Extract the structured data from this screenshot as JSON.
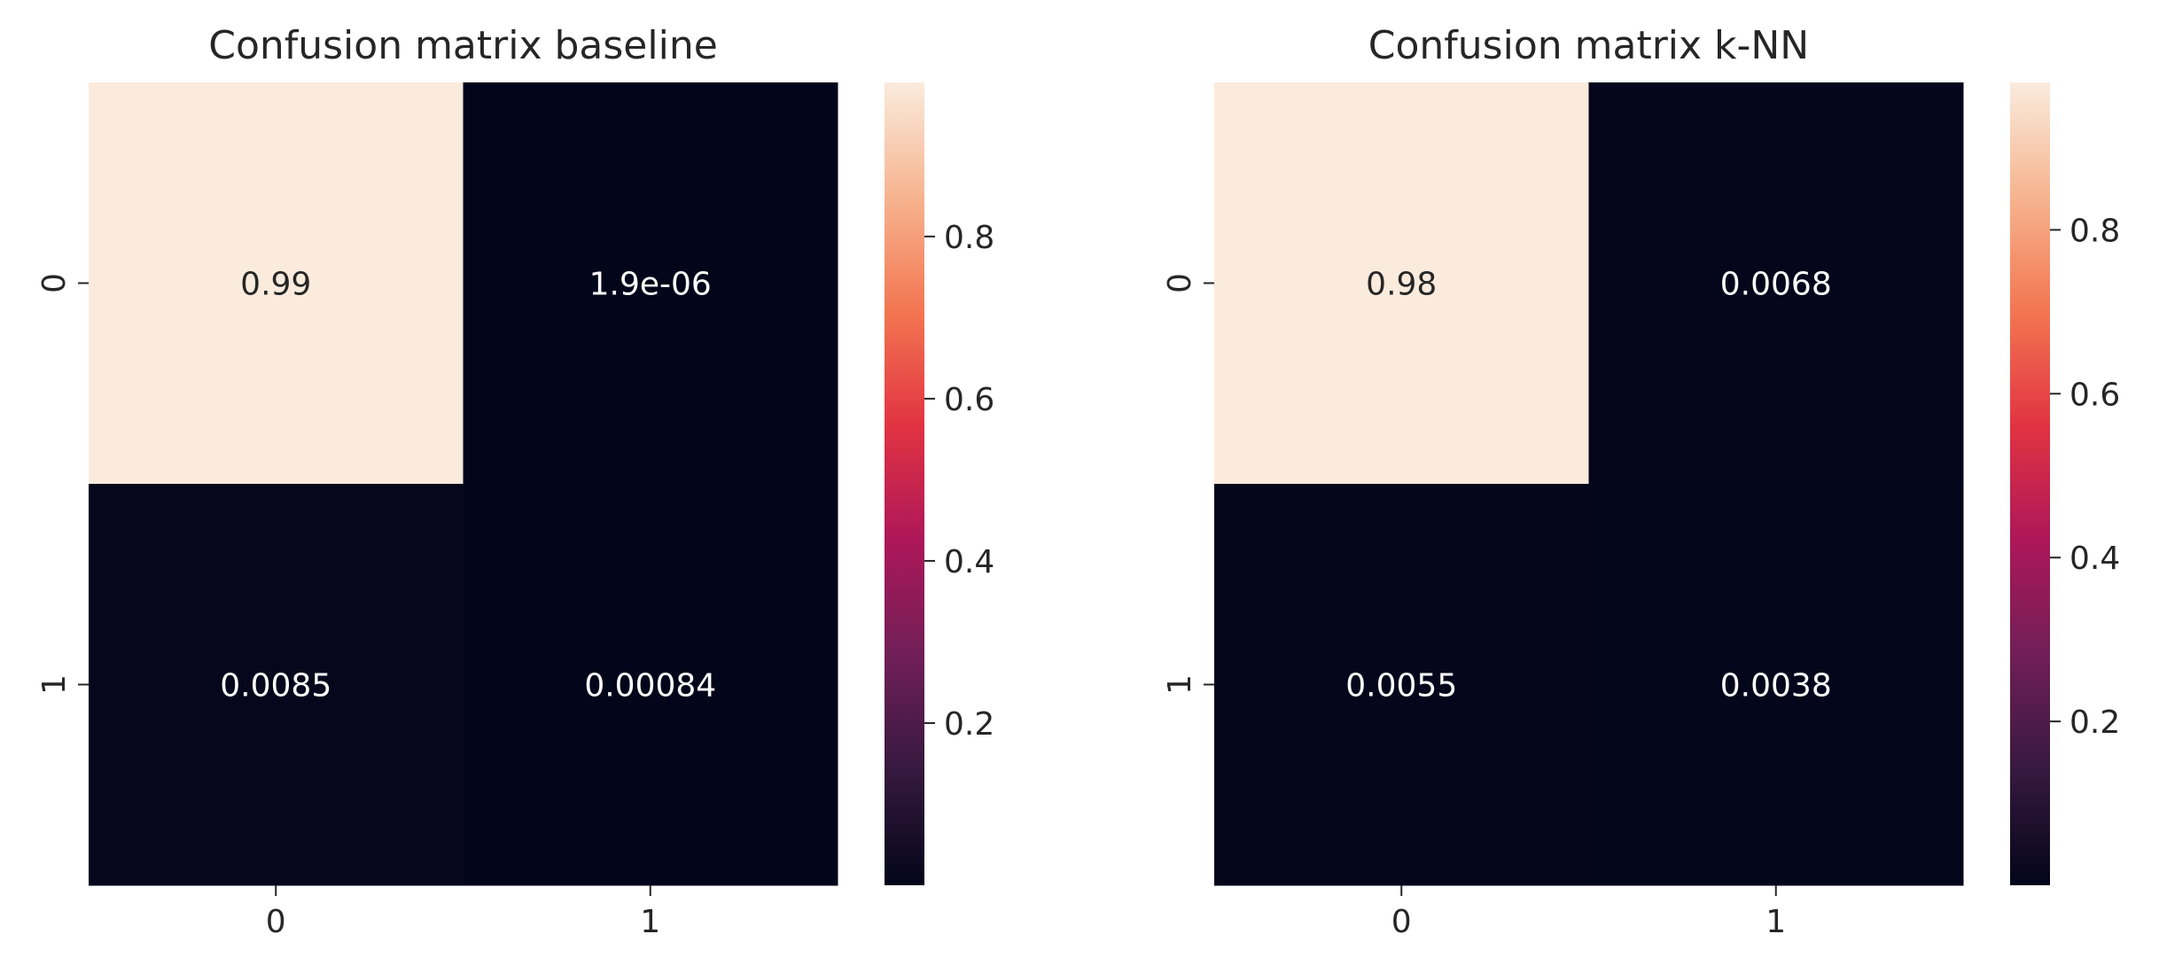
{
  "chart_data": [
    {
      "type": "heatmap",
      "title": "Confusion matrix baseline",
      "x_ticks": [
        "0",
        "1"
      ],
      "y_ticks": [
        "0",
        "1"
      ],
      "values": [
        [
          0.99,
          1.9e-06
        ],
        [
          0.0085,
          0.00084
        ]
      ],
      "annotations": [
        [
          "0.99",
          "1.9e-06"
        ],
        [
          "0.0085",
          "0.00084"
        ]
      ],
      "colorbar": {
        "ticks": [
          "0.2",
          "0.4",
          "0.6",
          "0.8"
        ],
        "range": [
          0,
          0.99
        ]
      },
      "colormap": "rocket"
    },
    {
      "type": "heatmap",
      "title": "Confusion matrix k-NN",
      "x_ticks": [
        "0",
        "1"
      ],
      "y_ticks": [
        "0",
        "1"
      ],
      "values": [
        [
          0.98,
          0.0068
        ],
        [
          0.0055,
          0.0038
        ]
      ],
      "annotations": [
        [
          "0.98",
          "0.0068"
        ],
        [
          "0.0055",
          "0.0038"
        ]
      ],
      "colorbar": {
        "ticks": [
          "0.2",
          "0.4",
          "0.6",
          "0.8"
        ],
        "range": [
          0,
          0.98
        ]
      },
      "colormap": "rocket"
    }
  ],
  "colors": {
    "text": "#262626",
    "annotation_light_bg": "#262626",
    "annotation_dark_bg": "#ffffff",
    "rocket_stops": [
      "#03051a",
      "#36193e",
      "#701f57",
      "#ad1759",
      "#e13342",
      "#f37651",
      "#f6b48f",
      "#faebdd"
    ]
  }
}
